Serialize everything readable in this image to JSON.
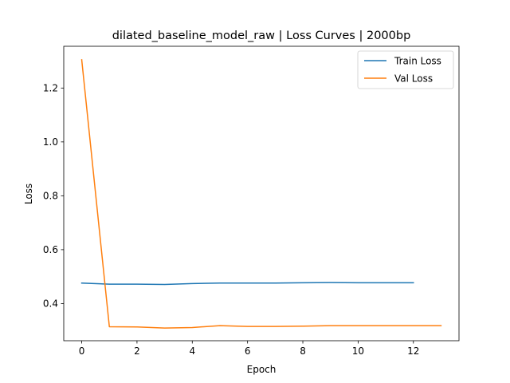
{
  "chart_data": {
    "type": "line",
    "title": "dilated_baseline_model_raw | Loss Curves | 2000bp",
    "xlabel": "Epoch",
    "ylabel": "Loss",
    "xlim": [
      -0.65,
      13.65
    ],
    "ylim": [
      0.262,
      1.355
    ],
    "xticks": [
      0,
      2,
      4,
      6,
      8,
      10,
      12
    ],
    "yticks": [
      0.4,
      0.6,
      0.8,
      1.0,
      1.2
    ],
    "ytick_labels": [
      "0.4",
      "0.6",
      "0.8",
      "1.0",
      "1.2"
    ],
    "grid": false,
    "legend_position": "top-right",
    "series": [
      {
        "name": "Train Loss",
        "color": "#1f77b4",
        "x": [
          0,
          1,
          2,
          3,
          4,
          5,
          6,
          7,
          8,
          9,
          10,
          11,
          12
        ],
        "values": [
          0.476,
          0.472,
          0.472,
          0.471,
          0.474,
          0.476,
          0.476,
          0.476,
          0.477,
          0.478,
          0.477,
          0.477,
          0.477
        ]
      },
      {
        "name": "Val Loss",
        "color": "#ff7f0e",
        "x": [
          0,
          1,
          2,
          3,
          4,
          5,
          6,
          7,
          8,
          9,
          10,
          11,
          12,
          13
        ],
        "values": [
          1.305,
          0.314,
          0.313,
          0.309,
          0.311,
          0.318,
          0.315,
          0.315,
          0.316,
          0.318,
          0.318,
          0.318,
          0.318,
          0.318
        ]
      }
    ]
  }
}
